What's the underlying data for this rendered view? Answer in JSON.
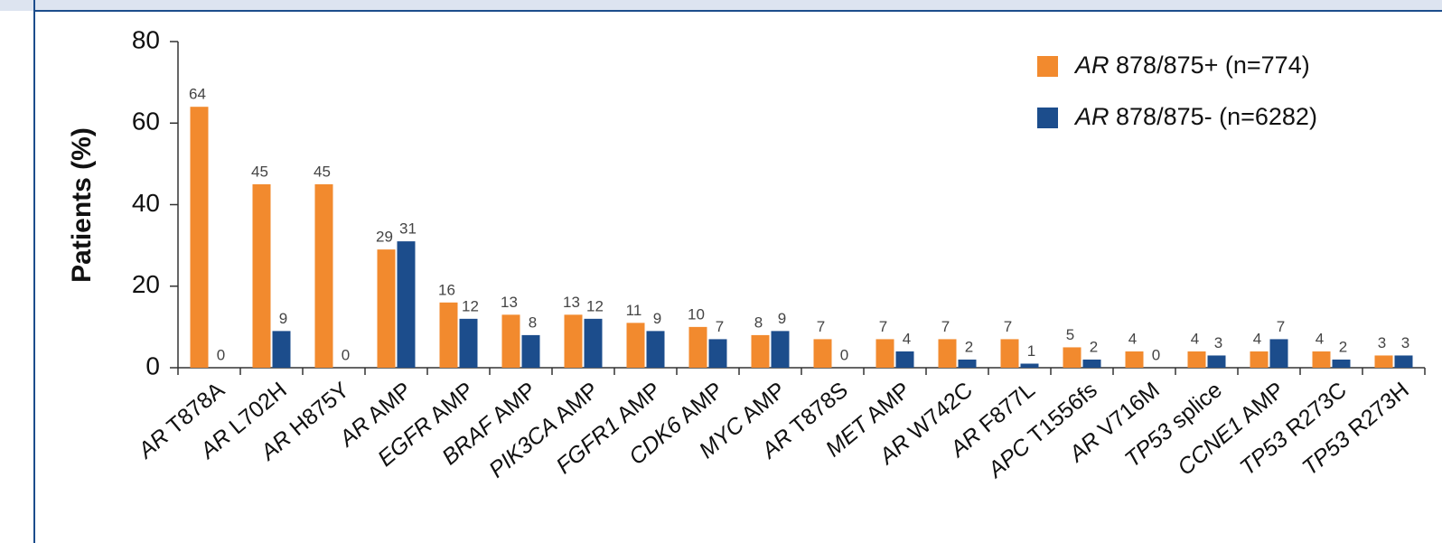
{
  "chart_data": {
    "type": "bar",
    "y_label": "Patients (%)",
    "categories": [
      "AR T878A",
      "AR L702H",
      "AR H875Y",
      "AR AMP",
      "EGFR AMP",
      "BRAF AMP",
      "PIK3CA AMP",
      "FGFR1 AMP",
      "CDK6 AMP",
      "MYC AMP",
      "AR T878S",
      "MET AMP",
      "AR W742C",
      "AR F877L",
      "APC T1556fs",
      "AR V716M",
      "TP53 splice",
      "CCNE1 AMP",
      "TP53 R273C",
      "TP53 R273H"
    ],
    "series": [
      {
        "name": "AR 878/875+ (n=774)",
        "color": "#f28a2e",
        "values": [
          64,
          45,
          45,
          29,
          16,
          13,
          13,
          11,
          10,
          8,
          7,
          7,
          7,
          7,
          5,
          4,
          4,
          4,
          4,
          3
        ]
      },
      {
        "name": "AR 878/875- (n=6282)",
        "color": "#1c4d8c",
        "values": [
          0,
          9,
          0,
          31,
          12,
          8,
          12,
          9,
          7,
          9,
          0,
          4,
          2,
          1,
          2,
          0,
          3,
          7,
          2,
          3
        ]
      }
    ],
    "ylim": [
      0,
      80
    ],
    "yticks": [
      0,
      20,
      40,
      60,
      80
    ],
    "legend": "upper right"
  }
}
